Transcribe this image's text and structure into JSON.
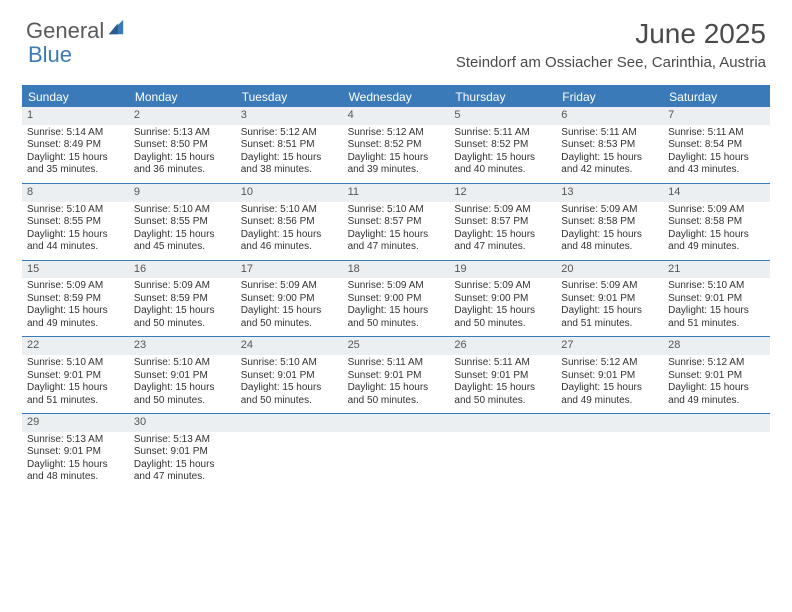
{
  "logo": {
    "word1": "General",
    "word2": "Blue"
  },
  "title": "June 2025",
  "location": "Steindorf am Ossiacher See, Carinthia, Austria",
  "colors": {
    "brand_blue": "#3a7ab8",
    "header_bg": "#3a7ab8",
    "daynum_bg": "#eceff1",
    "text": "#333333",
    "title_text": "#4a4a4a"
  },
  "day_names": [
    "Sunday",
    "Monday",
    "Tuesday",
    "Wednesday",
    "Thursday",
    "Friday",
    "Saturday"
  ],
  "weeks": [
    [
      {
        "n": "1",
        "sr": "Sunrise: 5:14 AM",
        "ss": "Sunset: 8:49 PM",
        "d1": "Daylight: 15 hours",
        "d2": "and 35 minutes."
      },
      {
        "n": "2",
        "sr": "Sunrise: 5:13 AM",
        "ss": "Sunset: 8:50 PM",
        "d1": "Daylight: 15 hours",
        "d2": "and 36 minutes."
      },
      {
        "n": "3",
        "sr": "Sunrise: 5:12 AM",
        "ss": "Sunset: 8:51 PM",
        "d1": "Daylight: 15 hours",
        "d2": "and 38 minutes."
      },
      {
        "n": "4",
        "sr": "Sunrise: 5:12 AM",
        "ss": "Sunset: 8:52 PM",
        "d1": "Daylight: 15 hours",
        "d2": "and 39 minutes."
      },
      {
        "n": "5",
        "sr": "Sunrise: 5:11 AM",
        "ss": "Sunset: 8:52 PM",
        "d1": "Daylight: 15 hours",
        "d2": "and 40 minutes."
      },
      {
        "n": "6",
        "sr": "Sunrise: 5:11 AM",
        "ss": "Sunset: 8:53 PM",
        "d1": "Daylight: 15 hours",
        "d2": "and 42 minutes."
      },
      {
        "n": "7",
        "sr": "Sunrise: 5:11 AM",
        "ss": "Sunset: 8:54 PM",
        "d1": "Daylight: 15 hours",
        "d2": "and 43 minutes."
      }
    ],
    [
      {
        "n": "8",
        "sr": "Sunrise: 5:10 AM",
        "ss": "Sunset: 8:55 PM",
        "d1": "Daylight: 15 hours",
        "d2": "and 44 minutes."
      },
      {
        "n": "9",
        "sr": "Sunrise: 5:10 AM",
        "ss": "Sunset: 8:55 PM",
        "d1": "Daylight: 15 hours",
        "d2": "and 45 minutes."
      },
      {
        "n": "10",
        "sr": "Sunrise: 5:10 AM",
        "ss": "Sunset: 8:56 PM",
        "d1": "Daylight: 15 hours",
        "d2": "and 46 minutes."
      },
      {
        "n": "11",
        "sr": "Sunrise: 5:10 AM",
        "ss": "Sunset: 8:57 PM",
        "d1": "Daylight: 15 hours",
        "d2": "and 47 minutes."
      },
      {
        "n": "12",
        "sr": "Sunrise: 5:09 AM",
        "ss": "Sunset: 8:57 PM",
        "d1": "Daylight: 15 hours",
        "d2": "and 47 minutes."
      },
      {
        "n": "13",
        "sr": "Sunrise: 5:09 AM",
        "ss": "Sunset: 8:58 PM",
        "d1": "Daylight: 15 hours",
        "d2": "and 48 minutes."
      },
      {
        "n": "14",
        "sr": "Sunrise: 5:09 AM",
        "ss": "Sunset: 8:58 PM",
        "d1": "Daylight: 15 hours",
        "d2": "and 49 minutes."
      }
    ],
    [
      {
        "n": "15",
        "sr": "Sunrise: 5:09 AM",
        "ss": "Sunset: 8:59 PM",
        "d1": "Daylight: 15 hours",
        "d2": "and 49 minutes."
      },
      {
        "n": "16",
        "sr": "Sunrise: 5:09 AM",
        "ss": "Sunset: 8:59 PM",
        "d1": "Daylight: 15 hours",
        "d2": "and 50 minutes."
      },
      {
        "n": "17",
        "sr": "Sunrise: 5:09 AM",
        "ss": "Sunset: 9:00 PM",
        "d1": "Daylight: 15 hours",
        "d2": "and 50 minutes."
      },
      {
        "n": "18",
        "sr": "Sunrise: 5:09 AM",
        "ss": "Sunset: 9:00 PM",
        "d1": "Daylight: 15 hours",
        "d2": "and 50 minutes."
      },
      {
        "n": "19",
        "sr": "Sunrise: 5:09 AM",
        "ss": "Sunset: 9:00 PM",
        "d1": "Daylight: 15 hours",
        "d2": "and 50 minutes."
      },
      {
        "n": "20",
        "sr": "Sunrise: 5:09 AM",
        "ss": "Sunset: 9:01 PM",
        "d1": "Daylight: 15 hours",
        "d2": "and 51 minutes."
      },
      {
        "n": "21",
        "sr": "Sunrise: 5:10 AM",
        "ss": "Sunset: 9:01 PM",
        "d1": "Daylight: 15 hours",
        "d2": "and 51 minutes."
      }
    ],
    [
      {
        "n": "22",
        "sr": "Sunrise: 5:10 AM",
        "ss": "Sunset: 9:01 PM",
        "d1": "Daylight: 15 hours",
        "d2": "and 51 minutes."
      },
      {
        "n": "23",
        "sr": "Sunrise: 5:10 AM",
        "ss": "Sunset: 9:01 PM",
        "d1": "Daylight: 15 hours",
        "d2": "and 50 minutes."
      },
      {
        "n": "24",
        "sr": "Sunrise: 5:10 AM",
        "ss": "Sunset: 9:01 PM",
        "d1": "Daylight: 15 hours",
        "d2": "and 50 minutes."
      },
      {
        "n": "25",
        "sr": "Sunrise: 5:11 AM",
        "ss": "Sunset: 9:01 PM",
        "d1": "Daylight: 15 hours",
        "d2": "and 50 minutes."
      },
      {
        "n": "26",
        "sr": "Sunrise: 5:11 AM",
        "ss": "Sunset: 9:01 PM",
        "d1": "Daylight: 15 hours",
        "d2": "and 50 minutes."
      },
      {
        "n": "27",
        "sr": "Sunrise: 5:12 AM",
        "ss": "Sunset: 9:01 PM",
        "d1": "Daylight: 15 hours",
        "d2": "and 49 minutes."
      },
      {
        "n": "28",
        "sr": "Sunrise: 5:12 AM",
        "ss": "Sunset: 9:01 PM",
        "d1": "Daylight: 15 hours",
        "d2": "and 49 minutes."
      }
    ],
    [
      {
        "n": "29",
        "sr": "Sunrise: 5:13 AM",
        "ss": "Sunset: 9:01 PM",
        "d1": "Daylight: 15 hours",
        "d2": "and 48 minutes."
      },
      {
        "n": "30",
        "sr": "Sunrise: 5:13 AM",
        "ss": "Sunset: 9:01 PM",
        "d1": "Daylight: 15 hours",
        "d2": "and 47 minutes."
      },
      null,
      null,
      null,
      null,
      null
    ]
  ]
}
